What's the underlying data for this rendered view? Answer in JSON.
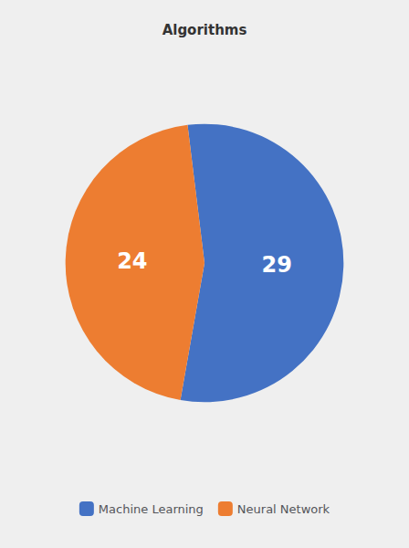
{
  "chart_data": {
    "type": "pie",
    "title": "Algorithms",
    "categories": [
      "Machine Learning",
      "Neural Network"
    ],
    "values": [
      29,
      24
    ],
    "colors": [
      "#4472C4",
      "#ED7D31"
    ],
    "data_labels": true,
    "legend": "bottom"
  }
}
